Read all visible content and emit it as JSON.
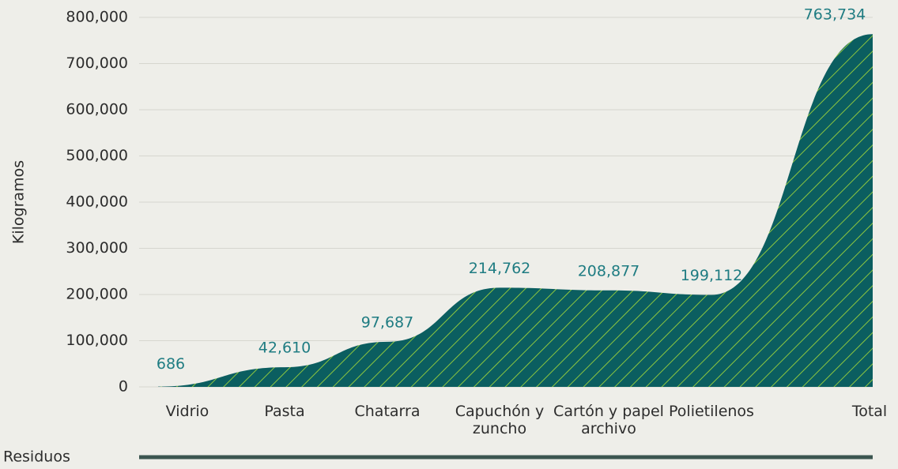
{
  "chart_data": {
    "type": "area",
    "y_label": "Kilogramos",
    "x_label": "Residuos",
    "categories": [
      "Vidrio",
      "Pasta",
      "Chatarra",
      "Capuchón y zuncho",
      "Cartón y papel archivo",
      "Polietilenos",
      "Total"
    ],
    "values": [
      686,
      42610,
      97687,
      214762,
      208877,
      199112,
      763734
    ],
    "value_labels": [
      "686",
      "42,610",
      "97,687",
      "214,762",
      "208,877",
      "199,112",
      "763,734"
    ],
    "color": "#0b5e60",
    "hatch_color": "#8cc63f",
    "ylim": [
      0,
      800000
    ],
    "yticks": [
      0,
      {
        "value": 100000,
        "label": "100,000"
      },
      {
        "value": 200000,
        "label": "200,000"
      },
      {
        "value": 300000,
        "label": "300,000"
      },
      {
        "value": 400000,
        "label": "400,000"
      },
      {
        "value": 500000,
        "label": "500,000"
      },
      {
        "value": 600000,
        "label": "600,000"
      },
      {
        "value": 700000,
        "label": "700,000"
      },
      {
        "value": 800000,
        "label": "800,000"
      }
    ],
    "grid": true
  }
}
